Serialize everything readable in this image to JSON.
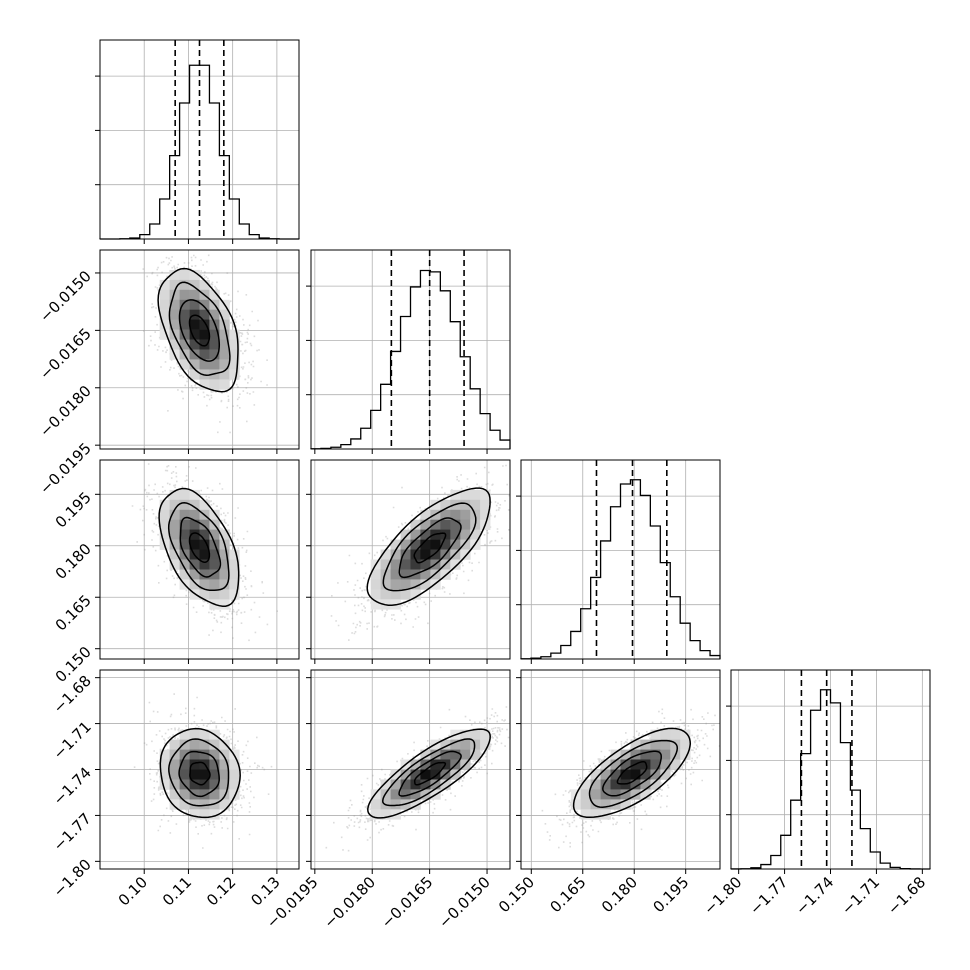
{
  "chart_data": {
    "type": "corner",
    "title": "",
    "grid": true,
    "parameters": [
      {
        "index": 0,
        "median": 0.1125,
        "sigma": 0.0045,
        "quantiles": [
          0.107,
          0.1125,
          0.118
        ],
        "range": [
          0.09,
          0.135
        ],
        "ticks": [
          0.1,
          0.11,
          0.12,
          0.13
        ],
        "tick_labels": [
          "0.10",
          "0.11",
          "0.12",
          "0.13"
        ]
      },
      {
        "index": 1,
        "median": -0.0165,
        "sigma": 0.0008,
        "quantiles": [
          -0.0175,
          -0.0165,
          -0.0156
        ],
        "range": [
          -0.0196,
          -0.0144
        ],
        "ticks": [
          -0.0195,
          -0.018,
          -0.0165,
          -0.015
        ],
        "tick_labels": [
          "−0.0195",
          "−0.0180",
          "−0.0165",
          "−0.0150"
        ]
      },
      {
        "index": 2,
        "median": 0.1795,
        "sigma": 0.0085,
        "quantiles": [
          0.169,
          0.1795,
          0.1895
        ],
        "range": [
          0.147,
          0.205
        ],
        "ticks": [
          0.15,
          0.165,
          0.18,
          0.195
        ],
        "tick_labels": [
          "0.150",
          "0.165",
          "0.180",
          "0.195"
        ]
      },
      {
        "index": 3,
        "median": -1.7425,
        "sigma": 0.0145,
        "quantiles": [
          -1.759,
          -1.7425,
          -1.726
        ],
        "range": [
          -1.805,
          -1.675
        ],
        "ticks": [
          -1.8,
          -1.77,
          -1.74,
          -1.71,
          -1.68
        ],
        "tick_labels": [
          "−1.80",
          "−1.77",
          "−1.74",
          "−1.71",
          "−1.68"
        ]
      }
    ],
    "correlations": [
      {
        "pair": [
          0,
          1
        ],
        "rho": -0.45
      },
      {
        "pair": [
          0,
          2
        ],
        "rho": -0.5
      },
      {
        "pair": [
          0,
          3
        ],
        "rho": -0.1
      },
      {
        "pair": [
          1,
          2
        ],
        "rho": 0.72
      },
      {
        "pair": [
          1,
          3
        ],
        "rho": 0.82
      },
      {
        "pair": [
          2,
          3
        ],
        "rho": 0.7
      }
    ],
    "contour_levels_sigma": [
      0.5,
      1.0,
      1.5,
      2.0
    ],
    "hist_bins": 20,
    "colors": {
      "line": "#000000",
      "grid": "#b0b0b0",
      "points": "#9a9a9a"
    }
  }
}
